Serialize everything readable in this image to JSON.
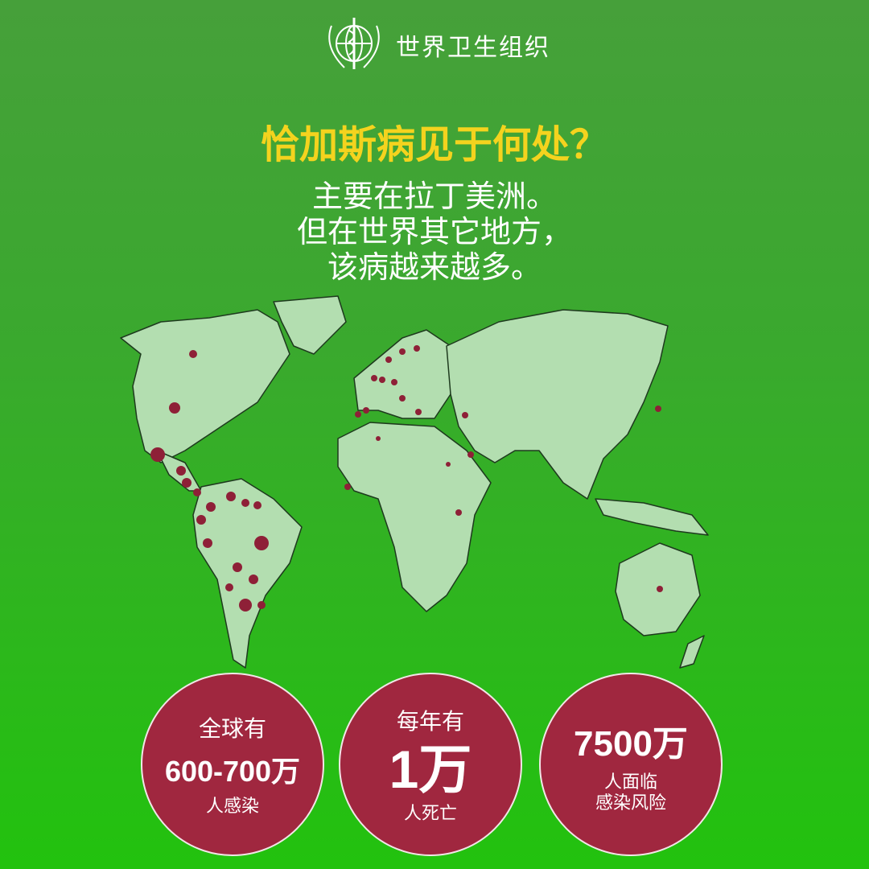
{
  "header": {
    "org_name": "世界卫生组织",
    "logo": "who-emblem"
  },
  "title": "恰加斯病见于何处？",
  "subtitle": [
    "主要在拉丁美洲。",
    "但在世界其它地方，",
    "该病越来越多。"
  ],
  "map": {
    "land_color": "#b3deb0",
    "case_marker_color": "#8e2037"
  },
  "stats": [
    {
      "pre": "全球有",
      "value": "600-700万",
      "post": "人感染"
    },
    {
      "pre": "每年有",
      "value": "1万",
      "post": "人死亡"
    },
    {
      "pre": "",
      "value": "7500万",
      "post": "人面临\n感染风险"
    }
  ],
  "colors": {
    "title": "#f4d31e",
    "circle": "#a0273f"
  }
}
